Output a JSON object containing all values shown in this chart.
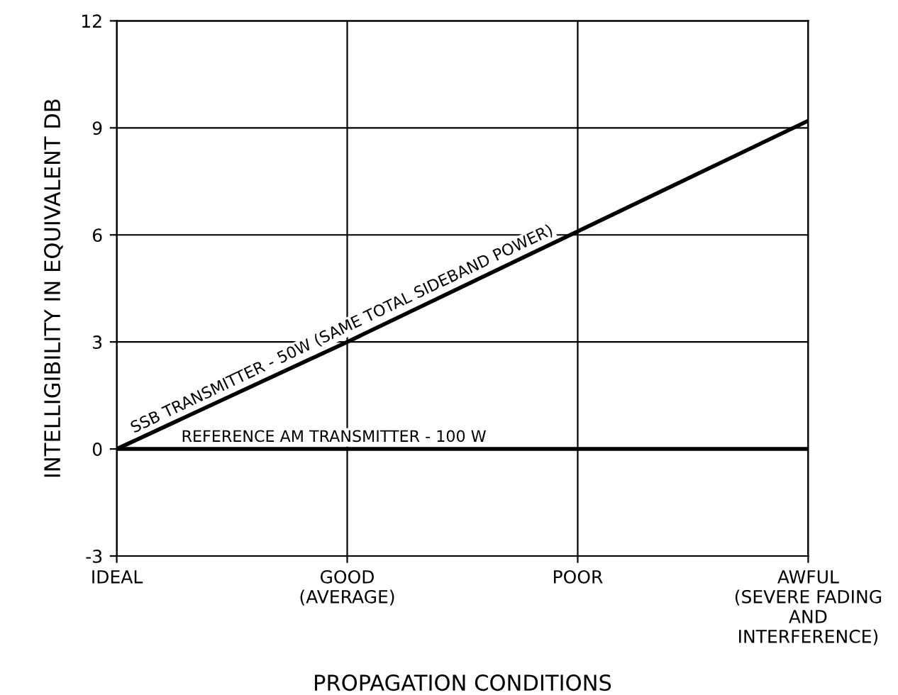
{
  "chart_data": {
    "type": "line",
    "xlabel": "PROPAGATION CONDITIONS",
    "ylabel": "INTELLIGIBILITY IN EQUIVALENT DB",
    "categories": [
      "IDEAL",
      "GOOD\n(AVERAGE)",
      "POOR",
      "AWFUL\n(SEVERE FADING\nAND\nINTERFERENCE)"
    ],
    "series": [
      {
        "name": "SSB TRANSMITTER - 50W (SAME TOTAL SIDEBAND POWER)",
        "color": "#000000",
        "values": [
          0,
          3,
          6.1,
          9.2
        ]
      },
      {
        "name": "REFERENCE AM TRANSMITTER - 100 W",
        "color": "#000000",
        "values": [
          0,
          0,
          0,
          0
        ]
      }
    ],
    "ylim": [
      -3,
      12
    ],
    "yticks": [
      -3,
      0,
      3,
      6,
      9,
      12
    ],
    "grid": true,
    "legend": false,
    "marker": "none",
    "line_style": "solid"
  }
}
